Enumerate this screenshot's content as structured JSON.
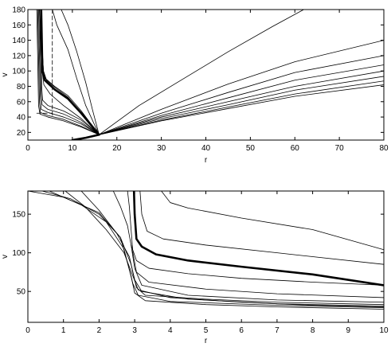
{
  "chart_data": [
    {
      "type": "line",
      "title": "",
      "xlabel": "r",
      "ylabel": "v",
      "xlim": [
        0,
        80
      ],
      "ylim": [
        10,
        180
      ],
      "xticks": [
        0,
        10,
        20,
        30,
        40,
        50,
        60,
        70,
        80
      ],
      "yticks": [
        20,
        40,
        60,
        80,
        100,
        120,
        140,
        160,
        180
      ],
      "grid": false,
      "focal_point": [
        16,
        17
      ],
      "series": [
        {
          "style": "thin",
          "points": [
            [
              2.6,
              180
            ],
            [
              2.8,
              150
            ],
            [
              3.0,
              120
            ],
            [
              3.2,
              100
            ],
            [
              3.6,
              82
            ],
            [
              5,
              70
            ],
            [
              8,
              55
            ],
            [
              12,
              38
            ],
            [
              16,
              17
            ]
          ]
        },
        {
          "style": "thin",
          "points": [
            [
              2.9,
              180
            ],
            [
              3.1,
              150
            ],
            [
              3.3,
              120
            ],
            [
              3.5,
              100
            ],
            [
              4.2,
              88
            ],
            [
              6,
              79
            ],
            [
              9,
              66
            ],
            [
              12,
              46
            ],
            [
              16,
              17
            ]
          ]
        },
        {
          "style": "thin",
          "points": [
            [
              3.0,
              180
            ],
            [
              3.2,
              150
            ],
            [
              3.3,
              120
            ],
            [
              3.5,
              100
            ],
            [
              4.0,
              90
            ],
            [
              6,
              80
            ],
            [
              9,
              68
            ],
            [
              12,
              48
            ],
            [
              16,
              17
            ]
          ]
        },
        {
          "style": "thick",
          "points": [
            [
              3.0,
              180
            ],
            [
              3.1,
              150
            ],
            [
              3.2,
              120
            ],
            [
              3.3,
              100
            ],
            [
              3.8,
              88
            ],
            [
              6,
              76
            ],
            [
              9,
              64
            ],
            [
              12,
              45
            ],
            [
              16,
              17
            ]
          ]
        },
        {
          "style": "thin",
          "points": [
            [
              2.8,
              180
            ],
            [
              3.0,
              120
            ],
            [
              3.1,
              80
            ],
            [
              3.3,
              62
            ],
            [
              4.5,
              55
            ],
            [
              8,
              48
            ],
            [
              12,
              36
            ],
            [
              16,
              17
            ]
          ]
        },
        {
          "style": "thin",
          "points": [
            [
              2.6,
              180
            ],
            [
              2.8,
              120
            ],
            [
              3.0,
              70
            ],
            [
              3.2,
              56
            ],
            [
              4.5,
              50
            ],
            [
              8,
              44
            ],
            [
              12,
              33
            ],
            [
              16,
              17
            ]
          ]
        },
        {
          "style": "thin",
          "points": [
            [
              2.4,
              180
            ],
            [
              2.6,
              120
            ],
            [
              2.8,
              65
            ],
            [
              3.0,
              50
            ],
            [
              4.5,
              46
            ],
            [
              8,
              40
            ],
            [
              12,
              31
            ],
            [
              16,
              17
            ]
          ]
        },
        {
          "style": "thin",
          "points": [
            [
              2.2,
              180
            ],
            [
              2.4,
              120
            ],
            [
              2.6,
              60
            ],
            [
              2.8,
              46
            ],
            [
              4.5,
              42
            ],
            [
              8,
              37
            ],
            [
              12,
              28
            ],
            [
              16,
              17
            ]
          ]
        },
        {
          "style": "thin",
          "points": [
            [
              2.0,
              180
            ],
            [
              2.2,
              120
            ],
            [
              2.4,
              55
            ],
            [
              2.7,
              44
            ],
            [
              4.5,
              40
            ],
            [
              8,
              35
            ],
            [
              12,
              27
            ],
            [
              16,
              17
            ]
          ]
        },
        {
          "style": "thin",
          "points": [
            [
              5.5,
              180
            ],
            [
              6.5,
              160
            ],
            [
              9,
              128
            ],
            [
              11,
              90
            ],
            [
              13,
              55
            ],
            [
              16,
              17
            ]
          ]
        },
        {
          "style": "thin",
          "points": [
            [
              7.5,
              180
            ],
            [
              9,
              160
            ],
            [
              11,
              125
            ],
            [
              13,
              85
            ],
            [
              14.5,
              50
            ],
            [
              16,
              17
            ]
          ]
        },
        {
          "style": "thin",
          "points": [
            [
              16,
              17
            ],
            [
              25,
              55
            ],
            [
              35,
              90
            ],
            [
              45,
              125
            ],
            [
              55,
              158
            ],
            [
              62,
              180
            ]
          ]
        },
        {
          "style": "thin",
          "points": [
            [
              16,
              17
            ],
            [
              30,
              50
            ],
            [
              45,
              83
            ],
            [
              60,
              112
            ],
            [
              80,
              140
            ]
          ]
        },
        {
          "style": "thin",
          "points": [
            [
              16,
              17
            ],
            [
              30,
              45
            ],
            [
              45,
              72
            ],
            [
              60,
              98
            ],
            [
              80,
              120
            ]
          ]
        },
        {
          "style": "thin",
          "points": [
            [
              16,
              17
            ],
            [
              30,
              42
            ],
            [
              45,
              65
            ],
            [
              60,
              88
            ],
            [
              80,
              108
            ]
          ]
        },
        {
          "style": "thin",
          "points": [
            [
              16,
              17
            ],
            [
              30,
              40
            ],
            [
              45,
              60
            ],
            [
              60,
              80
            ],
            [
              80,
              100
            ]
          ]
        },
        {
          "style": "thin",
          "points": [
            [
              16,
              17
            ],
            [
              30,
              38
            ],
            [
              45,
              56
            ],
            [
              60,
              75
            ],
            [
              80,
              93
            ]
          ]
        },
        {
          "style": "thin",
          "points": [
            [
              16,
              17
            ],
            [
              30,
              36
            ],
            [
              45,
              53
            ],
            [
              60,
              70
            ],
            [
              80,
              87
            ]
          ]
        },
        {
          "style": "thin",
          "points": [
            [
              16,
              17
            ],
            [
              30,
              35
            ],
            [
              45,
              51
            ],
            [
              60,
              67
            ],
            [
              80,
              82
            ]
          ]
        },
        {
          "style": "thick",
          "points": [
            [
              10,
              10
            ],
            [
              13,
              13
            ],
            [
              16,
              17
            ]
          ]
        },
        {
          "style": "dashed",
          "points": [
            [
              5.5,
              180
            ],
            [
              5.5,
              40
            ]
          ]
        },
        {
          "style": "dashed",
          "points": [
            [
              2.0,
              45
            ],
            [
              5.5,
              45
            ]
          ]
        }
      ]
    },
    {
      "type": "line",
      "title": "",
      "xlabel": "r",
      "ylabel": "v",
      "xlim": [
        0,
        10
      ],
      "ylim": [
        10,
        180
      ],
      "xticks": [
        0,
        1,
        2,
        3,
        4,
        5,
        6,
        7,
        8,
        9,
        10
      ],
      "yticks": [
        50,
        100,
        150
      ],
      "grid": false,
      "series": [
        {
          "style": "thin",
          "points": [
            [
              1.05,
              180
            ],
            [
              1.6,
              160
            ],
            [
              2.2,
              130
            ],
            [
              2.7,
              100
            ],
            [
              2.95,
              70
            ],
            [
              3.1,
              52
            ],
            [
              4,
              42
            ],
            [
              6,
              36
            ],
            [
              8,
              32
            ],
            [
              10,
              30
            ]
          ]
        },
        {
          "style": "thin",
          "points": [
            [
              1.5,
              180
            ],
            [
              2.0,
              155
            ],
            [
              2.5,
              125
            ],
            [
              2.85,
              95
            ],
            [
              3.0,
              65
            ],
            [
              3.2,
              50
            ],
            [
              4.5,
              40
            ],
            [
              7,
              34
            ],
            [
              10,
              31
            ]
          ]
        },
        {
          "style": "thin",
          "points": [
            [
              2.4,
              180
            ],
            [
              2.6,
              160
            ],
            [
              2.8,
              135
            ],
            [
              2.9,
              110
            ],
            [
              3.0,
              80
            ],
            [
              3.2,
              58
            ],
            [
              4.5,
              45
            ],
            [
              7,
              39
            ],
            [
              10,
              36
            ]
          ]
        },
        {
          "style": "thin",
          "points": [
            [
              2.8,
              180
            ],
            [
              2.85,
              160
            ],
            [
              2.9,
              130
            ],
            [
              2.95,
              100
            ],
            [
              3.05,
              75
            ],
            [
              3.4,
              62
            ],
            [
              5,
              53
            ],
            [
              7,
              47
            ],
            [
              10,
              42
            ]
          ]
        },
        {
          "style": "thin",
          "points": [
            [
              0.4,
              180
            ],
            [
              1.2,
              170
            ],
            [
              2.0,
              150
            ],
            [
              2.6,
              120
            ],
            [
              2.9,
              85
            ],
            [
              3.05,
              55
            ],
            [
              3.3,
              45
            ],
            [
              5,
              40
            ],
            [
              7,
              36
            ],
            [
              10,
              33
            ]
          ]
        },
        {
          "style": "thin",
          "points": [
            [
              2.9,
              110
            ],
            [
              3.05,
              90
            ],
            [
              3.4,
              80
            ],
            [
              4.5,
              73
            ],
            [
              6,
              67
            ],
            [
              8,
              62
            ],
            [
              10,
              58
            ]
          ]
        },
        {
          "style": "thick",
          "points": [
            [
              2.98,
              180
            ],
            [
              3.0,
              150
            ],
            [
              3.05,
              118
            ],
            [
              3.2,
              108
            ],
            [
              3.6,
              98
            ],
            [
              4.5,
              90
            ],
            [
              6,
              82
            ],
            [
              8,
              72
            ],
            [
              10,
              58
            ]
          ]
        },
        {
          "style": "thin",
          "points": [
            [
              3.15,
              180
            ],
            [
              3.2,
              150
            ],
            [
              3.35,
              128
            ],
            [
              3.8,
              118
            ],
            [
              5,
              110
            ],
            [
              7,
              100
            ],
            [
              10,
              85
            ]
          ]
        },
        {
          "style": "thin",
          "points": [
            [
              3.75,
              180
            ],
            [
              4.0,
              165
            ],
            [
              4.5,
              158
            ],
            [
              6,
              145
            ],
            [
              8,
              130
            ],
            [
              10,
              104
            ]
          ]
        },
        {
          "style": "thin",
          "points": [
            [
              0,
              180
            ],
            [
              1,
              172
            ],
            [
              2,
              152
            ],
            [
              2.6,
              120
            ],
            [
              2.9,
              70
            ],
            [
              3.0,
              48
            ],
            [
              3.3,
              38
            ],
            [
              5,
              33
            ],
            [
              7,
              30
            ],
            [
              10,
              27
            ]
          ]
        },
        {
          "style": "thin",
          "points": [
            [
              0.6,
              180
            ],
            [
              1.5,
              162
            ],
            [
              2.2,
              140
            ],
            [
              2.7,
              105
            ],
            [
              2.95,
              60
            ],
            [
              3.1,
              45
            ],
            [
              4,
              37
            ],
            [
              7,
              32
            ],
            [
              10,
              29
            ]
          ]
        }
      ]
    }
  ]
}
